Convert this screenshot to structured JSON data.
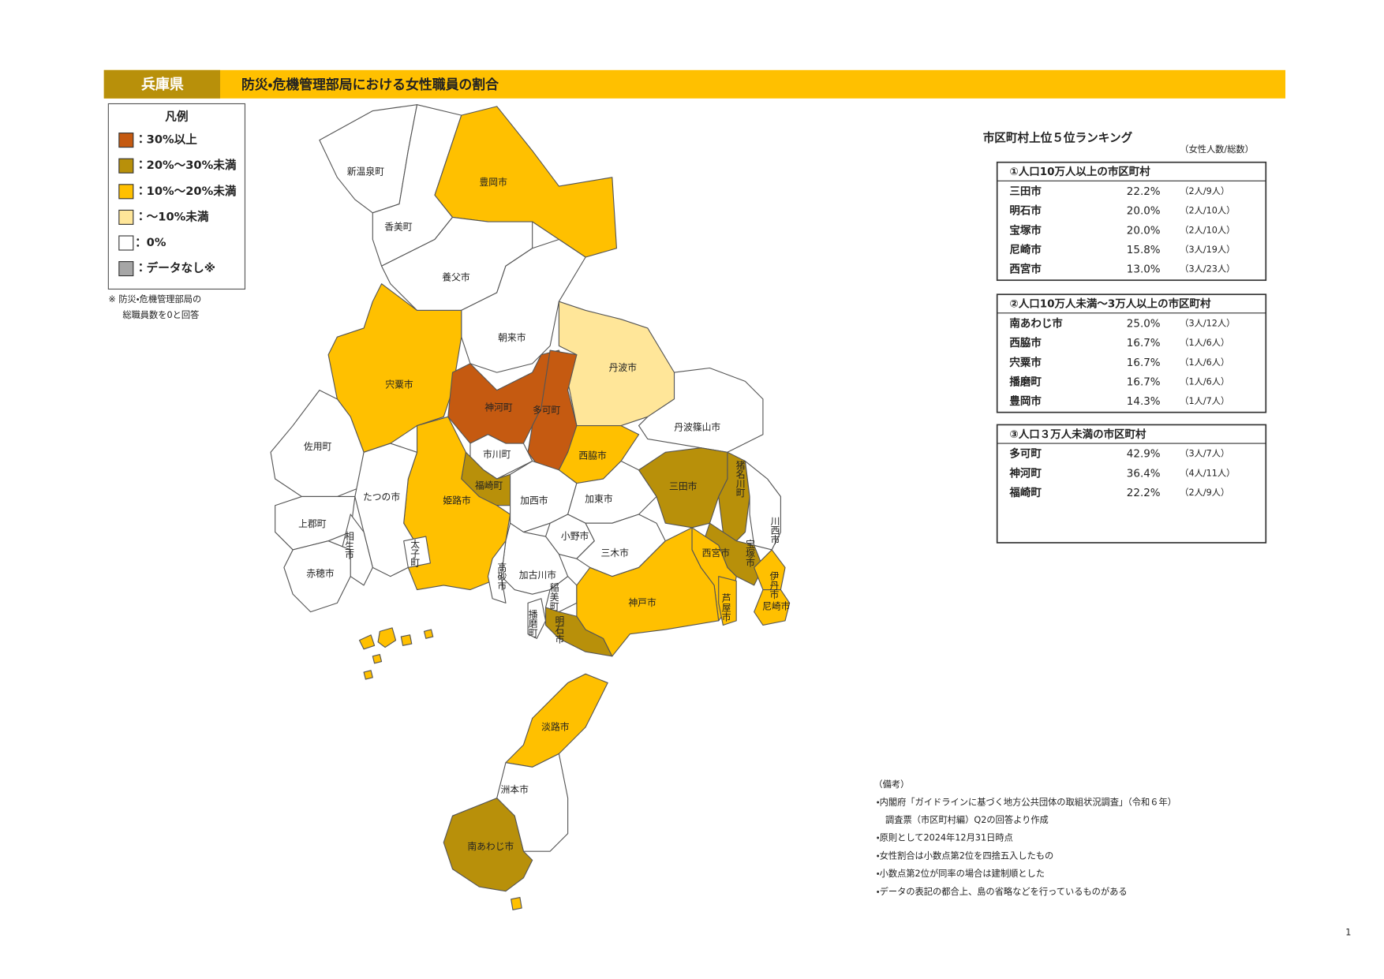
{
  "header": {
    "prefecture": "兵庫県",
    "title": "防災・危機管理部局における女性職員の割合"
  },
  "legend": {
    "title": "凡例",
    "items": [
      {
        "label": "：30%以上",
        "color": "#c55a11"
      },
      {
        "label": "：20%～30%未満",
        "color": "#b8900a"
      },
      {
        "label": "：10%～20%未満",
        "color": "#ffc000"
      },
      {
        "label": "：～10%未満",
        "color": "#ffe699"
      },
      {
        "label": "：0%",
        "color": "#ffffff"
      },
      {
        "label": "：データなし※",
        "color": "#a6a6a6"
      }
    ],
    "note": [
      "※ 防災・危機管理部局の",
      "総職員数を0と回答"
    ]
  },
  "map": {
    "labels": [
      "新温泉町",
      "香美町",
      "豊岡市",
      "養父市",
      "朝来市",
      "宍粟市",
      "丹波市",
      "神河町",
      "多可町",
      "丹波篠山市",
      "佐用町",
      "市川町",
      "西脇市",
      "三田市",
      "猪名川町",
      "福崎町",
      "たつの市",
      "姫路市",
      "加西市",
      "加東市",
      "上郡町",
      "相生市",
      "小野市",
      "三木市",
      "川西市",
      "宝塚市",
      "西宮市",
      "太子町",
      "赤穂市",
      "高砂市",
      "加古川市",
      "稲美町",
      "伊丹市",
      "神戸市",
      "芦屋市",
      "尼崎市",
      "播磨町",
      "明石市",
      "淡路市",
      "洲本市",
      "南あわじ市"
    ]
  },
  "ranking": {
    "title": "市区町村上位５位ランキング",
    "unit_note": "（女性人数/総数）",
    "groups": [
      {
        "heading": "①人口10万人以上の市区町村",
        "rows": [
          [
            "三田市",
            "22.2%",
            "（2人/9人）"
          ],
          [
            "明石市",
            "20.0%",
            "（2人/10人）"
          ],
          [
            "宝塚市",
            "20.0%",
            "（2人/10人）"
          ],
          [
            "尼崎市",
            "15.8%",
            "（3人/19人）"
          ],
          [
            "西宮市",
            "13.0%",
            "（3人/23人）"
          ]
        ]
      },
      {
        "heading": "②人口10万人未満～3万人以上の市区町村",
        "rows": [
          [
            "南あわじ市",
            "25.0%",
            "（3人/12人）"
          ],
          [
            "西脇市",
            "16.7%",
            "（1人/6人）"
          ],
          [
            "宍粟市",
            "16.7%",
            "（1人/6人）"
          ],
          [
            "播磨町",
            "16.7%",
            "（1人/6人）"
          ],
          [
            "豊岡市",
            "14.3%",
            "（1人/7人）"
          ]
        ]
      },
      {
        "heading": "③人口３万人未満の市区町村",
        "rows": [
          [
            "多可町",
            "42.9%",
            "（3人/7人）"
          ],
          [
            "神河町",
            "36.4%",
            "（4人/11人）"
          ],
          [
            "福崎町",
            "22.2%",
            "（2人/9人）"
          ]
        ]
      }
    ]
  },
  "remarks": {
    "heading": "（備考）",
    "lines": [
      "・内閣府「ガイドラインに基づく地方公共団体の取組状況調査」（令和６年）",
      "　調査票（市区町村編）Q2の回答より作成",
      "・原則として2024年12月31日時点",
      "・女性割合は小数点第2位を四捨五入したもの",
      "・小数点第2位が同率の場合は建制順とした",
      "・データの表記の都合上、島の省略などを行っているものがある"
    ]
  },
  "page_number": "1"
}
